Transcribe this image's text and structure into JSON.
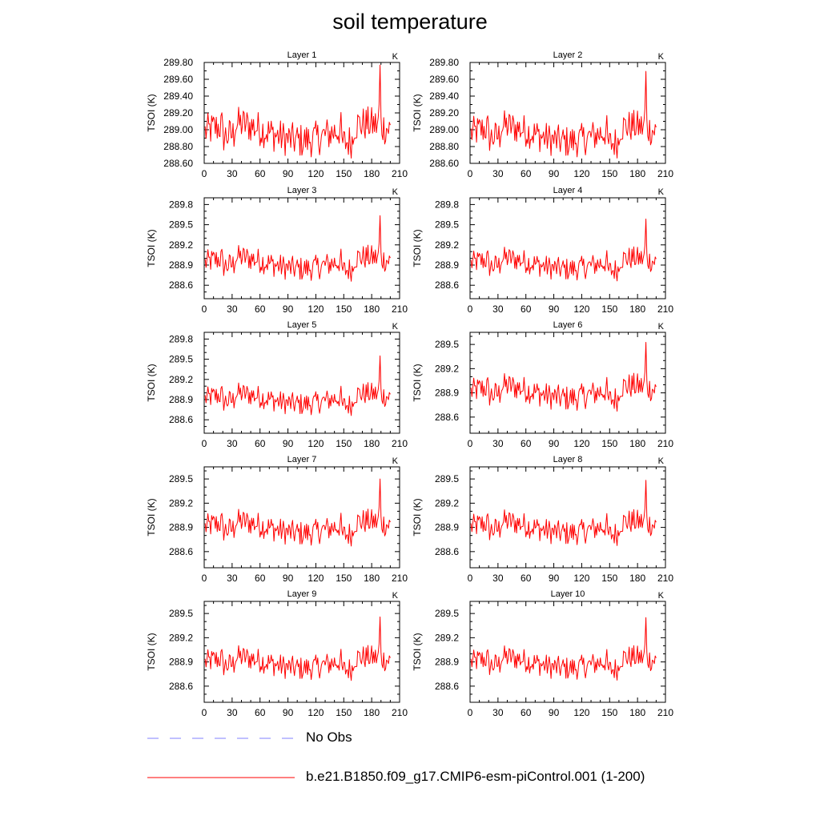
{
  "title": "soil temperature",
  "legend": [
    {
      "label": "No Obs",
      "color": "#8080ff",
      "dashed": true
    },
    {
      "label": "b.e21.B1850.f09_g17.CMIP6-esm-piControl.001 (1-200)",
      "color": "#ff0000",
      "dashed": false
    }
  ],
  "chart_data": [
    {
      "type": "line",
      "title": "Layer 1",
      "units": "K",
      "ylabel": "TSOI  (K)",
      "xlim": [
        0,
        210
      ],
      "ylim": [
        288.6,
        289.8
      ],
      "xticks": [
        "0",
        "30",
        "60",
        "90",
        "120",
        "150",
        "180",
        "210"
      ],
      "yticks": [
        "288.60",
        "288.80",
        "289.00",
        "289.20",
        "289.40",
        "289.60",
        "289.80"
      ],
      "series": [
        {
          "color": "#ff0000",
          "x": [],
          "y": []
        }
      ]
    },
    {
      "type": "line",
      "title": "Layer 2",
      "units": "K",
      "ylabel": "TSOI  (K)",
      "xlim": [
        0,
        210
      ],
      "ylim": [
        288.6,
        289.8
      ],
      "xticks": [
        "0",
        "30",
        "60",
        "90",
        "120",
        "150",
        "180",
        "210"
      ],
      "yticks": [
        "288.60",
        "288.80",
        "289.00",
        "289.20",
        "289.40",
        "289.60",
        "289.80"
      ],
      "series": [
        {
          "color": "#ff0000",
          "x": [],
          "y": []
        }
      ]
    },
    {
      "type": "line",
      "title": "Layer 3",
      "units": "K",
      "ylabel": "TSOI  (K)",
      "xlim": [
        0,
        210
      ],
      "ylim": [
        288.4,
        289.9
      ],
      "xticks": [
        "0",
        "30",
        "60",
        "90",
        "120",
        "150",
        "180",
        "210"
      ],
      "yticks": [
        "288.6",
        "288.9",
        "289.2",
        "289.5",
        "289.8"
      ],
      "series": [
        {
          "color": "#ff0000",
          "x": [],
          "y": []
        }
      ]
    },
    {
      "type": "line",
      "title": "Layer 4",
      "units": "K",
      "ylabel": "TSOI  (K)",
      "xlim": [
        0,
        210
      ],
      "ylim": [
        288.4,
        289.9
      ],
      "xticks": [
        "0",
        "30",
        "60",
        "90",
        "120",
        "150",
        "180",
        "210"
      ],
      "yticks": [
        "288.6",
        "288.9",
        "289.2",
        "289.5",
        "289.8"
      ],
      "series": [
        {
          "color": "#ff0000",
          "x": [],
          "y": []
        }
      ]
    },
    {
      "type": "line",
      "title": "Layer 5",
      "units": "K",
      "ylabel": "TSOI  (K)",
      "xlim": [
        0,
        210
      ],
      "ylim": [
        288.4,
        289.9
      ],
      "xticks": [
        "0",
        "30",
        "60",
        "90",
        "120",
        "150",
        "180",
        "210"
      ],
      "yticks": [
        "288.6",
        "288.9",
        "289.2",
        "289.5",
        "289.8"
      ],
      "series": [
        {
          "color": "#ff0000",
          "x": [],
          "y": []
        }
      ]
    },
    {
      "type": "line",
      "title": "Layer 6",
      "units": "K",
      "ylabel": "TSOI  (K)",
      "xlim": [
        0,
        210
      ],
      "ylim": [
        288.4,
        289.65
      ],
      "xticks": [
        "0",
        "30",
        "60",
        "90",
        "120",
        "150",
        "180",
        "210"
      ],
      "yticks": [
        "288.6",
        "288.9",
        "289.2",
        "289.5"
      ],
      "series": [
        {
          "color": "#ff0000",
          "x": [],
          "y": []
        }
      ]
    },
    {
      "type": "line",
      "title": "Layer 7",
      "units": "K",
      "ylabel": "TSOI  (K)",
      "xlim": [
        0,
        210
      ],
      "ylim": [
        288.4,
        289.65
      ],
      "xticks": [
        "0",
        "30",
        "60",
        "90",
        "120",
        "150",
        "180",
        "210"
      ],
      "yticks": [
        "288.6",
        "288.9",
        "289.2",
        "289.5"
      ],
      "series": [
        {
          "color": "#ff0000",
          "x": [],
          "y": []
        }
      ]
    },
    {
      "type": "line",
      "title": "Layer 8",
      "units": "K",
      "ylabel": "TSOI  (K)",
      "xlim": [
        0,
        210
      ],
      "ylim": [
        288.4,
        289.65
      ],
      "xticks": [
        "0",
        "30",
        "60",
        "90",
        "120",
        "150",
        "180",
        "210"
      ],
      "yticks": [
        "288.6",
        "288.9",
        "289.2",
        "289.5"
      ],
      "series": [
        {
          "color": "#ff0000",
          "x": [],
          "y": []
        }
      ]
    },
    {
      "type": "line",
      "title": "Layer 9",
      "units": "K",
      "ylabel": "TSOI  (K)",
      "xlim": [
        0,
        210
      ],
      "ylim": [
        288.4,
        289.65
      ],
      "xticks": [
        "0",
        "30",
        "60",
        "90",
        "120",
        "150",
        "180",
        "210"
      ],
      "yticks": [
        "288.6",
        "288.9",
        "289.2",
        "289.5"
      ],
      "series": [
        {
          "color": "#ff0000",
          "x": [],
          "y": []
        }
      ]
    },
    {
      "type": "line",
      "title": "Layer 10",
      "units": "K",
      "ylabel": "TSOI  (K)",
      "xlim": [
        0,
        210
      ],
      "ylim": [
        288.4,
        289.65
      ],
      "xticks": [
        "0",
        "30",
        "60",
        "90",
        "120",
        "150",
        "180",
        "210"
      ],
      "yticks": [
        "288.6",
        "288.9",
        "289.2",
        "289.5"
      ],
      "series": [
        {
          "color": "#ff0000",
          "x": [],
          "y": []
        }
      ]
    }
  ]
}
